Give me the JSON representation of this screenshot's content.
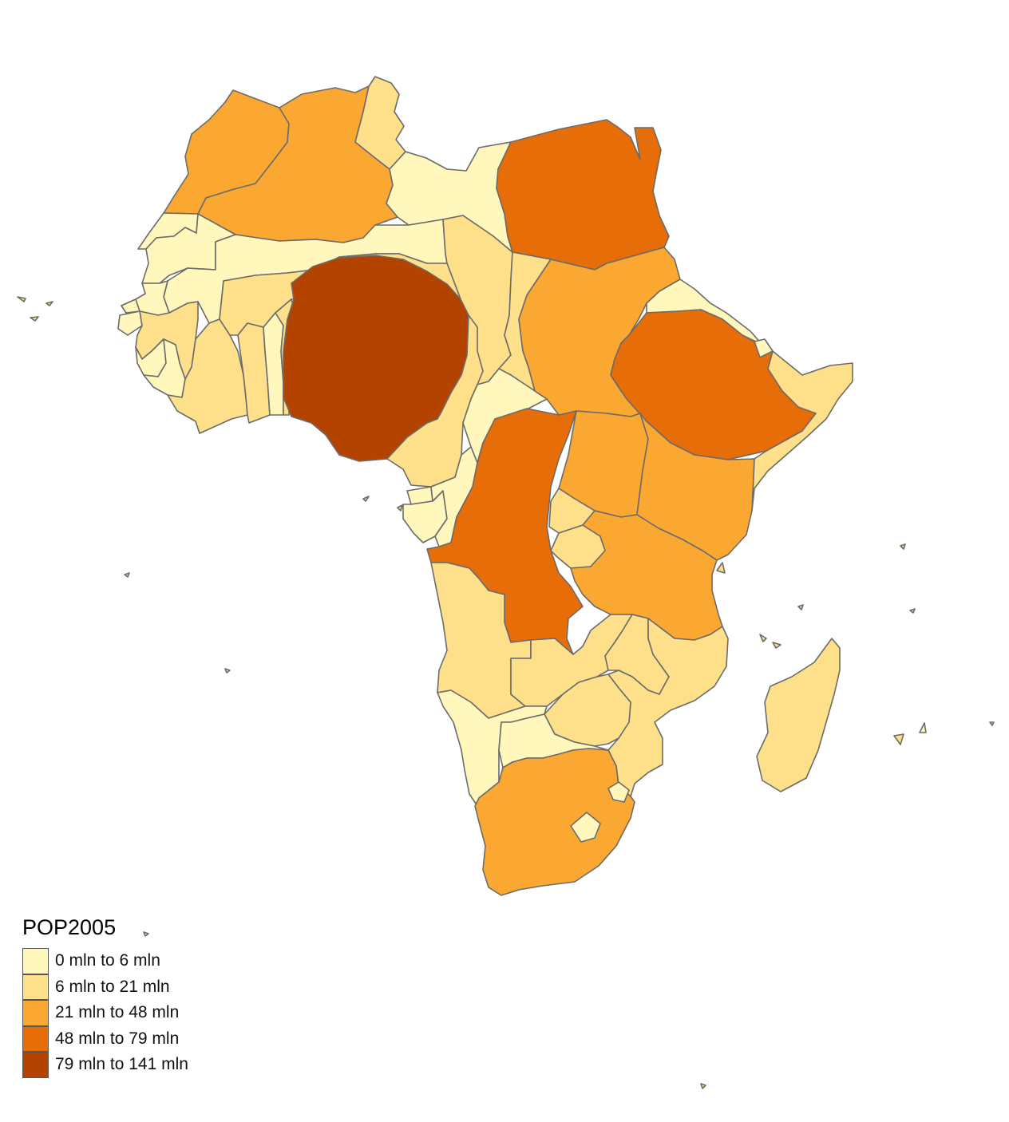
{
  "legend": {
    "title": "POP2005",
    "classes": [
      {
        "label": "0 mln to 6 mln",
        "color": "#FFF7BC"
      },
      {
        "label": "6 mln to 21 mln",
        "color": "#FEE08B"
      },
      {
        "label": "21 mln to 48 mln",
        "color": "#FBA832"
      },
      {
        "label": "48 mln to 79 mln",
        "color": "#E66D07"
      },
      {
        "label": "79 mln to 141 mln",
        "color": "#B44300"
      }
    ]
  },
  "regions": [
    {
      "name": "morocco",
      "class": 2
    },
    {
      "name": "western-sahara",
      "class": 0
    },
    {
      "name": "algeria",
      "class": 2
    },
    {
      "name": "tunisia",
      "class": 1
    },
    {
      "name": "libya",
      "class": 0
    },
    {
      "name": "egypt",
      "class": 3
    },
    {
      "name": "mauritania",
      "class": 0
    },
    {
      "name": "mali",
      "class": 0
    },
    {
      "name": "niger",
      "class": 1
    },
    {
      "name": "chad",
      "class": 1
    },
    {
      "name": "sudan",
      "class": 2
    },
    {
      "name": "eritrea",
      "class": 0
    },
    {
      "name": "djibouti",
      "class": 0
    },
    {
      "name": "ethiopia",
      "class": 3
    },
    {
      "name": "somalia",
      "class": 1
    },
    {
      "name": "senegal",
      "class": 0
    },
    {
      "name": "gambia",
      "class": 0
    },
    {
      "name": "guinea-bissau",
      "class": 0
    },
    {
      "name": "guinea",
      "class": 1
    },
    {
      "name": "sierra-leone",
      "class": 0
    },
    {
      "name": "liberia",
      "class": 0
    },
    {
      "name": "cote-divoire",
      "class": 1
    },
    {
      "name": "burkina-faso",
      "class": 1
    },
    {
      "name": "ghana",
      "class": 1
    },
    {
      "name": "togo",
      "class": 0
    },
    {
      "name": "benin",
      "class": 1
    },
    {
      "name": "nigeria",
      "class": 4
    },
    {
      "name": "cameroon",
      "class": 1
    },
    {
      "name": "central-african-republic",
      "class": 0
    },
    {
      "name": "equatorial-guinea",
      "class": 0
    },
    {
      "name": "gabon",
      "class": 0
    },
    {
      "name": "congo",
      "class": 0
    },
    {
      "name": "dr-congo",
      "class": 3
    },
    {
      "name": "uganda",
      "class": 2
    },
    {
      "name": "kenya",
      "class": 2
    },
    {
      "name": "rwanda",
      "class": 1
    },
    {
      "name": "burundi",
      "class": 1
    },
    {
      "name": "tanzania",
      "class": 2
    },
    {
      "name": "angola",
      "class": 1
    },
    {
      "name": "zambia",
      "class": 1
    },
    {
      "name": "malawi",
      "class": 1
    },
    {
      "name": "mozambique",
      "class": 1
    },
    {
      "name": "zimbabwe",
      "class": 1
    },
    {
      "name": "namibia",
      "class": 0
    },
    {
      "name": "botswana",
      "class": 0
    },
    {
      "name": "south-africa",
      "class": 2
    },
    {
      "name": "lesotho",
      "class": 0
    },
    {
      "name": "swaziland",
      "class": 0
    },
    {
      "name": "madagascar",
      "class": 1
    },
    {
      "name": "comoros",
      "class": 1
    },
    {
      "name": "mayotte",
      "class": 0
    }
  ]
}
